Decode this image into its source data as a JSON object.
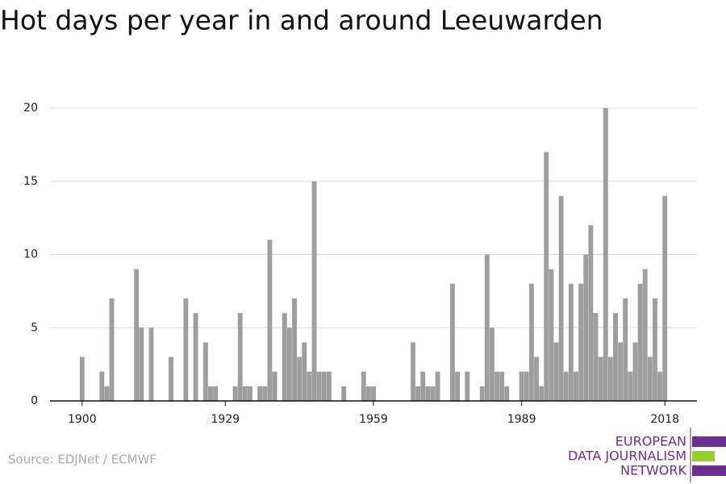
{
  "chart_data": {
    "type": "bar",
    "title": "Hot days per year in and around Leeuwarden",
    "source": "Source: EDJNet / ECMWF",
    "logo": [
      "EUROPEAN",
      "DATA JOURNALISM",
      "NETWORK"
    ],
    "color": "#9e9e9e",
    "grid": true,
    "x": [
      1900,
      1901,
      1902,
      1903,
      1904,
      1905,
      1906,
      1907,
      1908,
      1909,
      1910,
      1911,
      1912,
      1913,
      1914,
      1915,
      1916,
      1917,
      1918,
      1919,
      1920,
      1921,
      1922,
      1923,
      1924,
      1925,
      1926,
      1927,
      1928,
      1929,
      1930,
      1931,
      1932,
      1933,
      1934,
      1935,
      1936,
      1937,
      1938,
      1939,
      1940,
      1941,
      1942,
      1943,
      1944,
      1945,
      1946,
      1947,
      1948,
      1949,
      1950,
      1951,
      1952,
      1953,
      1954,
      1955,
      1956,
      1957,
      1958,
      1959,
      1960,
      1961,
      1962,
      1963,
      1964,
      1965,
      1966,
      1967,
      1968,
      1969,
      1970,
      1971,
      1972,
      1973,
      1974,
      1975,
      1976,
      1977,
      1978,
      1979,
      1980,
      1981,
      1982,
      1983,
      1984,
      1985,
      1986,
      1987,
      1988,
      1989,
      1990,
      1991,
      1992,
      1993,
      1994,
      1995,
      1996,
      1997,
      1998,
      1999,
      2000,
      2001,
      2002,
      2003,
      2004,
      2005,
      2006,
      2007,
      2008,
      2009,
      2010,
      2011,
      2012,
      2013,
      2014,
      2015,
      2016,
      2017,
      2018
    ],
    "values": [
      3,
      0,
      0,
      0,
      2,
      1,
      7,
      0,
      0,
      0,
      0,
      9,
      5,
      0,
      5,
      0,
      0,
      0,
      3,
      0,
      0,
      7,
      0,
      6,
      0,
      4,
      1,
      1,
      0,
      0,
      0,
      1,
      6,
      1,
      1,
      0,
      1,
      1,
      11,
      2,
      0,
      6,
      5,
      7,
      3,
      4,
      2,
      15,
      2,
      2,
      2,
      0,
      0,
      1,
      0,
      0,
      0,
      2,
      1,
      1,
      0,
      0,
      0,
      0,
      0,
      0,
      0,
      4,
      1,
      2,
      1,
      1,
      2,
      0,
      0,
      8,
      2,
      0,
      2,
      0,
      0,
      1,
      10,
      5,
      2,
      2,
      1,
      0,
      0,
      2,
      2,
      8,
      3,
      1,
      17,
      9,
      4,
      14,
      2,
      8,
      2,
      8,
      10,
      12,
      6,
      3,
      20,
      3,
      6,
      4,
      7,
      2,
      4,
      8,
      9,
      3,
      7,
      2,
      14
    ],
    "xlim": [
      1893.5,
      2024.5
    ],
    "xticks": [
      1900,
      1929,
      1959,
      1989,
      2018
    ],
    "ylim": [
      0,
      20
    ],
    "yticks": [
      0,
      5,
      10,
      15,
      20
    ]
  }
}
